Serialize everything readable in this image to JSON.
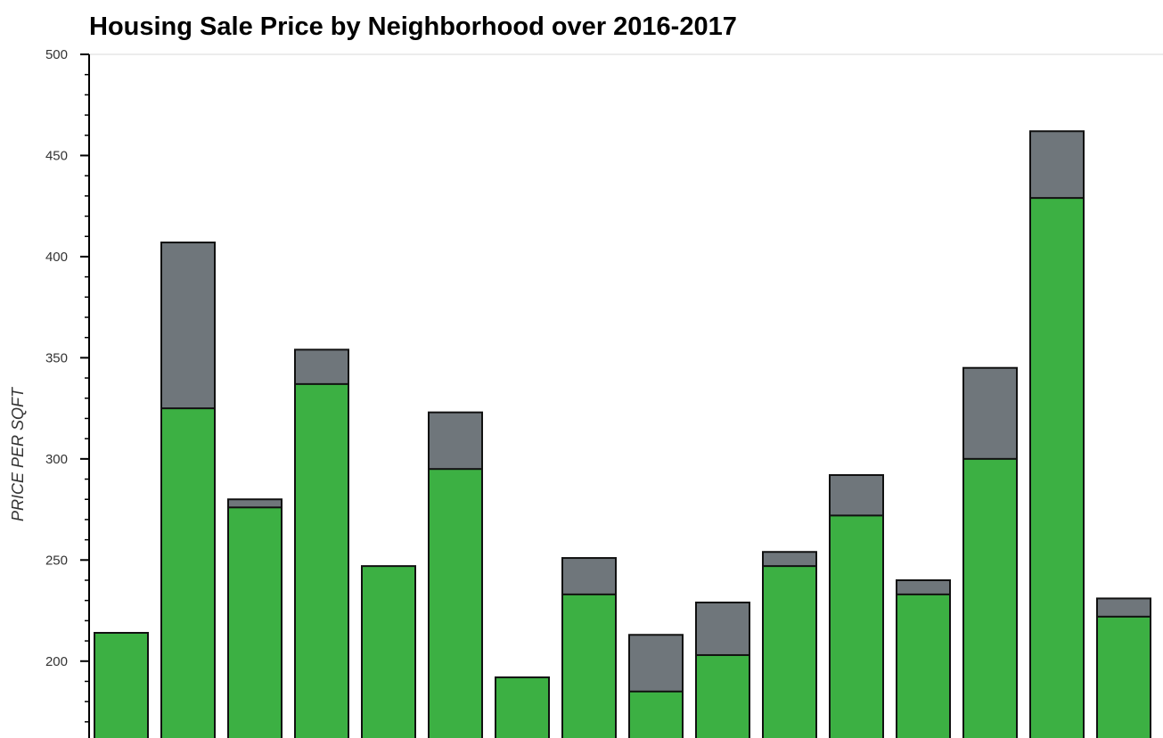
{
  "chart_data": {
    "type": "bar",
    "title": "Housing Sale Price by Neighborhood over 2016-2017",
    "ylabel": "PRICE PER SQFT",
    "ylim": [
      162,
      500
    ],
    "yticks": [
      200,
      250,
      300,
      350,
      400,
      450,
      500
    ],
    "grid": false,
    "bars": [
      {
        "top": 214,
        "segments": [
          214
        ]
      },
      {
        "top": 407,
        "segments": [
          325,
          407
        ]
      },
      {
        "top": 280,
        "segments": [
          276,
          280
        ]
      },
      {
        "top": 354,
        "segments": [
          337,
          354
        ]
      },
      {
        "top": 247,
        "segments": [
          247
        ]
      },
      {
        "top": 323,
        "segments": [
          295,
          323
        ]
      },
      {
        "top": 192,
        "segments": [
          192
        ]
      },
      {
        "top": 251,
        "segments": [
          233,
          251
        ]
      },
      {
        "top": 213,
        "segments": [
          185,
          213
        ]
      },
      {
        "top": 229,
        "segments": [
          203,
          229
        ]
      },
      {
        "top": 254,
        "segments": [
          247,
          254
        ]
      },
      {
        "top": 292,
        "segments": [
          272,
          292
        ]
      },
      {
        "top": 240,
        "segments": [
          233,
          240
        ]
      },
      {
        "top": 345,
        "segments": [
          300,
          345
        ]
      },
      {
        "top": 462,
        "segments": [
          429,
          462
        ]
      },
      {
        "top": 231,
        "segments": [
          222,
          231
        ]
      }
    ],
    "colors": {
      "primary": "#3cb043",
      "secondary": "#6f767b",
      "outline": "#111111"
    }
  }
}
